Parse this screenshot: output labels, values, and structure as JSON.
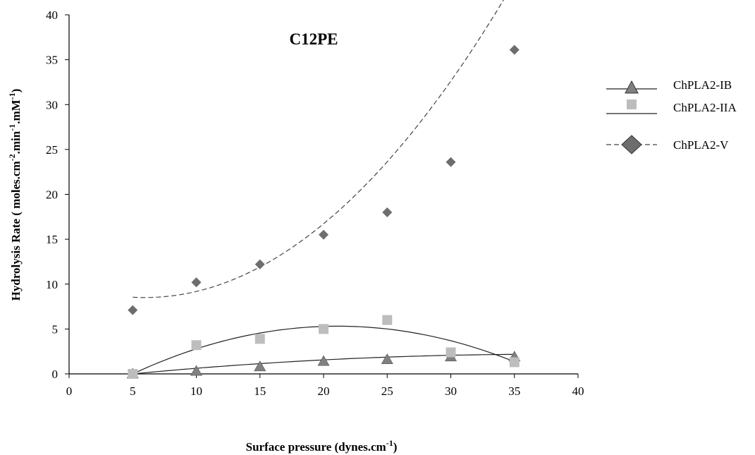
{
  "chart_data": {
    "type": "scatter",
    "title": "C12PE",
    "xlabel": {
      "text": "Surface pressure (dynes.cm",
      "sup": "-1",
      "tail": ")"
    },
    "ylabel": {
      "parts": [
        {
          "t": "Hydrolysis Rate ( moles.cm"
        },
        {
          "t": "-2",
          "sup": true
        },
        {
          "t": ".min"
        },
        {
          "t": "-1",
          "sup": true
        },
        {
          "t": ".mM"
        },
        {
          "t": "-1",
          "sup": true
        },
        {
          "t": ")"
        }
      ]
    },
    "xlim": [
      0,
      40
    ],
    "ylim": [
      0,
      40
    ],
    "xticks": [
      0,
      5,
      10,
      15,
      20,
      25,
      30,
      35,
      40
    ],
    "yticks": [
      0,
      5,
      10,
      15,
      20,
      25,
      30,
      35,
      40
    ],
    "grid": false,
    "legend_position": "right",
    "series": [
      {
        "name": "ChPLA2-IB",
        "marker": "triangle",
        "color": "#808080",
        "line": "solid",
        "x": [
          5,
          10,
          15,
          20,
          25,
          30,
          35
        ],
        "y": [
          0.0,
          0.3,
          0.8,
          1.4,
          1.6,
          1.9,
          1.9
        ],
        "fit": [
          -0.0021,
          0.1564,
          -0.7302
        ]
      },
      {
        "name": "ChPLA2-IIA",
        "marker": "square",
        "color": "#bdbdbd",
        "line": "solid",
        "x": [
          5,
          10,
          15,
          20,
          25,
          30,
          35
        ],
        "y": [
          0.0,
          3.2,
          3.9,
          5.0,
          6.0,
          2.4,
          1.3
        ],
        "fit": [
          -0.0205,
          0.8652,
          -3.8154
        ]
      },
      {
        "name": "ChPLA2-V",
        "marker": "diamond",
        "color": "#6d6d6d",
        "line": "dashed",
        "x": [
          5,
          10,
          15,
          20,
          25,
          30,
          35
        ],
        "y": [
          7.1,
          10.2,
          12.2,
          15.5,
          18.0,
          23.6,
          36.1
        ],
        "fit": [
          0.0418,
          -0.5,
          10.0
        ]
      }
    ]
  }
}
